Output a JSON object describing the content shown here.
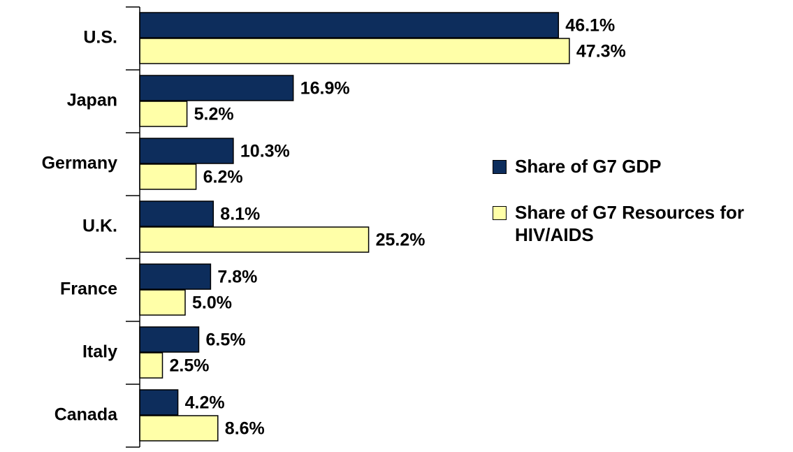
{
  "chart_data": {
    "type": "bar",
    "orientation": "horizontal",
    "categories": [
      "U.S.",
      "Japan",
      "Germany",
      "U.K.",
      "France",
      "Italy",
      "Canada"
    ],
    "series": [
      {
        "name": "Share of G7 GDP",
        "color": "#0d2d5c",
        "values": [
          46.1,
          16.9,
          10.3,
          8.1,
          7.8,
          6.5,
          4.2
        ],
        "value_labels": [
          "46.1%",
          "16.9%",
          "10.3%",
          "8.1%",
          "7.8%",
          "6.5%",
          "4.2%"
        ]
      },
      {
        "name": "Share of G7 Resources for HIV/AIDS",
        "color": "#ffffa8",
        "values": [
          47.3,
          5.2,
          6.2,
          25.2,
          5.0,
          2.5,
          8.6
        ],
        "value_labels": [
          "47.3%",
          "5.2%",
          "6.2%",
          "25.2%",
          "5.0%",
          "2.5%",
          "8.6%"
        ]
      }
    ],
    "legend": "right"
  }
}
